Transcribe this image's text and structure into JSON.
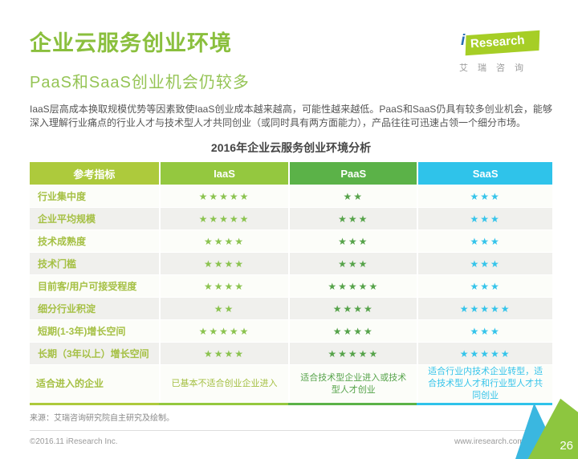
{
  "page": {
    "title": "企业云服务创业环境",
    "subtitle": "PaaS和SaaS创业机会仍较多",
    "intro": "IaaS层高成本换取规模优势等因素致使IaaS创业成本越来越高，可能性越来越低。PaaS和SaaS仍具有较多创业机会，能够深入理解行业痛点的行业人才与技术型人才共同创业（或同时具有两方面能力），产品往往可迅速占领一个细分市场。"
  },
  "logo": {
    "brand_i": "i",
    "brand_rest": "Research",
    "caption": "艾瑞咨询"
  },
  "chart_data": {
    "type": "table",
    "title": "2016年企业云服务创业环境分析",
    "columns": [
      "参考指标",
      "IaaS",
      "PaaS",
      "SaaS"
    ],
    "rating_scale_max": 5,
    "star_glyph": "★",
    "rows": [
      {
        "label": "行业集中度",
        "stars": {
          "iaas": 5,
          "paas": 2,
          "saas": 3
        }
      },
      {
        "label": "企业平均规模",
        "stars": {
          "iaas": 5,
          "paas": 3,
          "saas": 3
        }
      },
      {
        "label": "技术成熟度",
        "stars": {
          "iaas": 4,
          "paas": 3,
          "saas": 3
        }
      },
      {
        "label": "技术门槛",
        "stars": {
          "iaas": 4,
          "paas": 3,
          "saas": 3
        }
      },
      {
        "label": "目前客/用户可接受程度",
        "stars": {
          "iaas": 4,
          "paas": 5,
          "saas": 3
        }
      },
      {
        "label": "细分行业积淀",
        "stars": {
          "iaas": 2,
          "paas": 4,
          "saas": 5
        }
      },
      {
        "label": "短期(1-3年)增长空间",
        "stars": {
          "iaas": 5,
          "paas": 4,
          "saas": 3
        }
      },
      {
        "label": "长期（3年以上）增长空间",
        "stars": {
          "iaas": 4,
          "paas": 5,
          "saas": 5
        }
      },
      {
        "label": "适合进入的企业",
        "texts": {
          "iaas": "已基本不适合创业企业进入",
          "paas": "适合技术型企业进入或技术型人才创业",
          "saas": "适合行业内技术企业转型，适合技术型人才和行业型人才共同创业"
        }
      }
    ]
  },
  "footer": {
    "source": "来源：艾瑞咨询研究院自主研究及绘制。",
    "copyright": "©2016.11 iResearch Inc.",
    "website": "www.iresearch.com.cn",
    "page_number": "26"
  },
  "colors": {
    "title_green": "#8abf3d",
    "subtitle_green": "#95c455",
    "header_label_bg": "#adca3c",
    "header_iaas_bg": "#94c83f",
    "header_paas_bg": "#5bb248",
    "header_saas_bg": "#2fc3ea",
    "star_iaas": "#8bc34f",
    "star_paas": "#56a34a",
    "star_saas": "#35c4ea",
    "row_alt_bg": "#f0f0ed",
    "logo_green": "#a6ce26",
    "logo_blue": "#2a6fb4",
    "corner_green": "#8dc63f",
    "corner_cyan": "#3ab7e0"
  }
}
